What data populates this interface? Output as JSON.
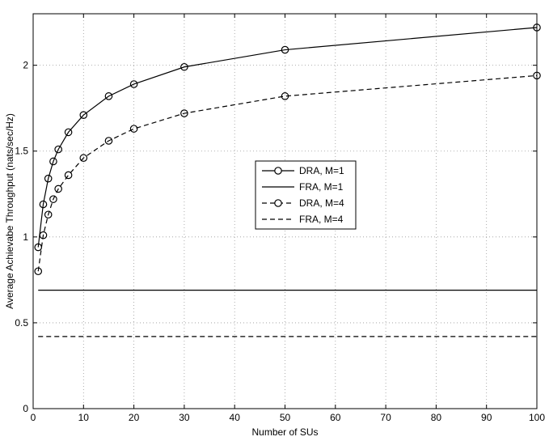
{
  "chart_data": {
    "type": "line",
    "title": "",
    "xlabel": "Number of SUs",
    "ylabel": "Average Achievabe  Throughput (nats/sec/Hz)",
    "xlim": [
      0,
      100
    ],
    "ylim": [
      0,
      2.3
    ],
    "xticks": [
      0,
      10,
      20,
      30,
      40,
      50,
      60,
      70,
      80,
      90,
      100
    ],
    "yticks": [
      0,
      0.5,
      1,
      1.5,
      2
    ],
    "xtick_labels": [
      "0",
      "10",
      "20",
      "30",
      "40",
      "50",
      "60",
      "70",
      "80",
      "90",
      "100"
    ],
    "ytick_labels": [
      "0",
      "0.5",
      "1",
      "1.5",
      "2"
    ],
    "grid": true,
    "legend_position": "center-right",
    "series": [
      {
        "name": "DRA, M=1",
        "style": "solid",
        "marker": "circle",
        "x": [
          1,
          2,
          3,
          4,
          5,
          7,
          10,
          15,
          20,
          30,
          50,
          100
        ],
        "y": [
          0.94,
          1.19,
          1.34,
          1.44,
          1.51,
          1.61,
          1.71,
          1.82,
          1.89,
          1.99,
          2.09,
          2.22
        ]
      },
      {
        "name": "FRA, M=1",
        "style": "solid",
        "marker": "none",
        "x": [
          1,
          100
        ],
        "y": [
          0.69,
          0.69
        ]
      },
      {
        "name": "DRA, M=4",
        "style": "dashed",
        "marker": "circle",
        "x": [
          1,
          2,
          3,
          4,
          5,
          7,
          10,
          15,
          20,
          30,
          50,
          100
        ],
        "y": [
          0.8,
          1.01,
          1.13,
          1.22,
          1.28,
          1.36,
          1.46,
          1.56,
          1.63,
          1.72,
          1.82,
          1.94
        ]
      },
      {
        "name": "FRA, M=4",
        "style": "dashed",
        "marker": "none",
        "x": [
          1,
          100
        ],
        "y": [
          0.42,
          0.42
        ]
      }
    ]
  }
}
